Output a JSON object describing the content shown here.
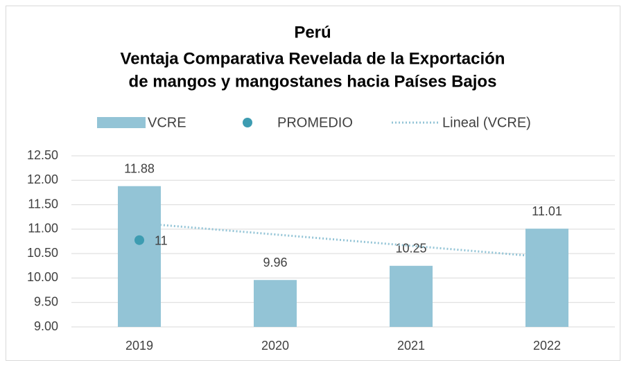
{
  "chart_data": {
    "type": "bar",
    "title": [
      "Perú",
      "Ventaja Comparativa Revelada de la Exportación",
      "de mangos y mangostanes hacia Países Bajos"
    ],
    "categories": [
      "2019",
      "2020",
      "2021",
      "2022"
    ],
    "series": [
      {
        "name": "VCRE",
        "type": "bar",
        "color": "#93c4d6",
        "values": [
          11.88,
          9.96,
          10.25,
          11.01
        ]
      },
      {
        "name": "PROMEDIO",
        "type": "scatter",
        "color": "#3d9cb1",
        "values": [
          10.775,
          null,
          null,
          null
        ],
        "value_labels": [
          "11",
          null,
          null,
          null
        ]
      },
      {
        "name": "Lineal (VCRE)",
        "type": "trend",
        "color": "#93c4d6",
        "values": [
          11.123,
          10.891,
          10.659,
          10.427
        ]
      }
    ],
    "ylim": [
      9,
      12.5
    ],
    "yticks": [
      {
        "value": 9,
        "label": "9.00"
      },
      {
        "value": 9.5,
        "label": "9.50"
      },
      {
        "value": 10,
        "label": "10.00"
      },
      {
        "value": 10.5,
        "label": "10.50"
      },
      {
        "value": 11,
        "label": "11.00"
      },
      {
        "value": 11.5,
        "label": "11.50"
      },
      {
        "value": 12,
        "label": "12.00"
      },
      {
        "value": 12.5,
        "label": "12.50"
      }
    ],
    "grid": true,
    "legend": "top"
  }
}
